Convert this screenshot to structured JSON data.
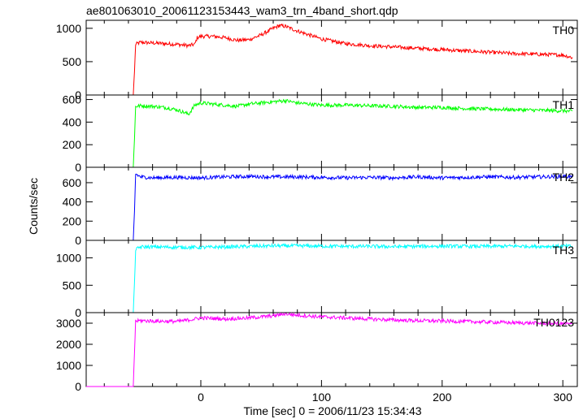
{
  "chart_data": {
    "type": "line",
    "title": "ae801063010_20061123153443_wam3_trn_4band_short.qdp",
    "xlabel": "Time [sec] 0 = 2006/11/23 15:34:43",
    "ylabel": "Counts/sec",
    "xlim": [
      -95,
      312
    ],
    "xticks_major": [
      0,
      100,
      200,
      300
    ],
    "grid": false,
    "panels": [
      {
        "name": "TH0",
        "color": "#ff0000",
        "ylim": [
          0,
          1120
        ],
        "yticks": [
          0,
          500,
          1000
        ],
        "x": [
          -95,
          -56,
          -55,
          -54,
          -50,
          -40,
          -30,
          -20,
          -10,
          -5,
          -3,
          0,
          10,
          20,
          30,
          40,
          50,
          60,
          65,
          70,
          80,
          90,
          100,
          120,
          140,
          160,
          180,
          200,
          220,
          240,
          260,
          280,
          300,
          308
        ],
        "values": [
          0,
          0,
          350,
          760,
          790,
          780,
          770,
          760,
          740,
          760,
          860,
          880,
          880,
          860,
          820,
          830,
          900,
          1000,
          1040,
          1030,
          960,
          900,
          840,
          770,
          740,
          720,
          700,
          680,
          660,
          640,
          620,
          610,
          600,
          560
        ]
      },
      {
        "name": "TH1",
        "color": "#00ff00",
        "ylim": [
          0,
          640
        ],
        "yticks": [
          0,
          200,
          400,
          600
        ],
        "x": [
          -95,
          -56,
          -55,
          -54,
          -50,
          -40,
          -30,
          -20,
          -10,
          -5,
          0,
          10,
          20,
          30,
          40,
          50,
          60,
          70,
          80,
          90,
          100,
          120,
          140,
          160,
          180,
          200,
          220,
          240,
          260,
          280,
          300,
          308
        ],
        "values": [
          0,
          0,
          250,
          540,
          545,
          540,
          530,
          510,
          470,
          550,
          570,
          560,
          550,
          540,
          560,
          570,
          580,
          590,
          570,
          560,
          550,
          550,
          545,
          540,
          530,
          530,
          520,
          515,
          510,
          505,
          500,
          495
        ]
      },
      {
        "name": "TH2",
        "color": "#0000ff",
        "ylim": [
          0,
          760
        ],
        "yticks": [
          0,
          200,
          400,
          600
        ],
        "x": [
          -95,
          -56,
          -55,
          -54,
          -50,
          -40,
          -20,
          0,
          20,
          40,
          60,
          80,
          100,
          120,
          140,
          160,
          180,
          200,
          220,
          240,
          260,
          280,
          300,
          308
        ],
        "values": [
          0,
          0,
          300,
          690,
          660,
          650,
          655,
          650,
          660,
          665,
          660,
          660,
          655,
          650,
          655,
          650,
          660,
          650,
          655,
          660,
          655,
          660,
          665,
          660
        ]
      },
      {
        "name": "TH3",
        "color": "#00ffff",
        "ylim": [
          0,
          1320
        ],
        "yticks": [
          0,
          500,
          1000
        ],
        "x": [
          -95,
          -56,
          -55,
          -54,
          -50,
          -40,
          -20,
          0,
          20,
          40,
          60,
          80,
          100,
          120,
          140,
          160,
          180,
          200,
          220,
          240,
          260,
          280,
          300,
          308
        ],
        "values": [
          0,
          0,
          550,
          1150,
          1200,
          1200,
          1195,
          1190,
          1200,
          1210,
          1220,
          1220,
          1215,
          1210,
          1210,
          1205,
          1210,
          1215,
          1210,
          1210,
          1215,
          1210,
          1215,
          1210
        ]
      },
      {
        "name": "TH0123",
        "color": "#ff00ff",
        "ylim": [
          0,
          3500
        ],
        "yticks": [
          0,
          1000,
          2000,
          3000
        ],
        "x": [
          -95,
          -56,
          -55,
          -54,
          -50,
          -40,
          -20,
          -10,
          0,
          20,
          40,
          60,
          70,
          80,
          100,
          120,
          140,
          160,
          180,
          200,
          220,
          240,
          260,
          280,
          300,
          308
        ],
        "values": [
          0,
          0,
          1600,
          3100,
          3120,
          3100,
          3080,
          3150,
          3250,
          3200,
          3250,
          3350,
          3450,
          3380,
          3300,
          3250,
          3200,
          3150,
          3120,
          3100,
          3080,
          3050,
          3020,
          3000,
          2980,
          2950
        ]
      }
    ]
  }
}
